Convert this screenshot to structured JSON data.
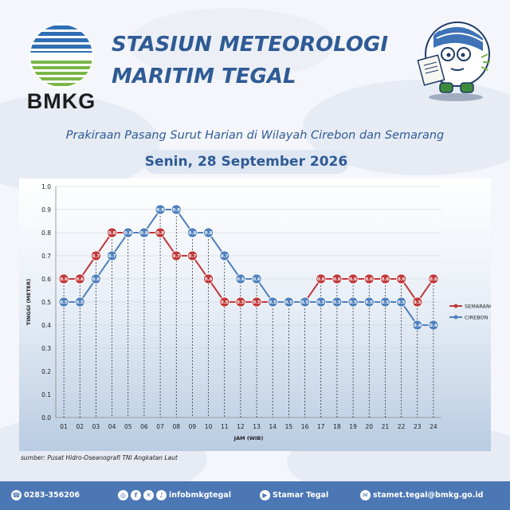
{
  "header": {
    "logo_text": "BMKG",
    "title_line1": "STASIUN METEOROLOGI",
    "title_line2": "MARITIM TEGAL",
    "subtitle": "Prakiraan Pasang Surut Harian di Wilayah Cirebon dan Semarang",
    "date": "Senin, 28 September 2026"
  },
  "source": "sumber: Pusat Hidro-Oseanografi TNI Angkatan Laut",
  "footer": {
    "phone": "0283-356206",
    "social": "infobmkgtegal",
    "youtube": "Stamar Tegal",
    "email": "stamet.tegal@bmkg.go.id"
  },
  "colors": {
    "semarang": "#c0393b",
    "cirebon": "#4f81bd",
    "title": "#2f5b95",
    "footer": "#4c77b5"
  },
  "chart_data": {
    "type": "line",
    "xlabel": "JAM (WIB)",
    "ylabel": "TINGGI (METER)",
    "ylim": [
      0,
      1.0
    ],
    "yticks": [
      "0.0",
      "0.1",
      "0.2",
      "0.3",
      "0.4",
      "0.5",
      "0.6",
      "0.7",
      "0.8",
      "0.9",
      "1.0"
    ],
    "categories": [
      "01",
      "02",
      "03",
      "04",
      "05",
      "06",
      "07",
      "08",
      "09",
      "10",
      "11",
      "12",
      "13",
      "14",
      "15",
      "16",
      "17",
      "18",
      "19",
      "20",
      "21",
      "22",
      "23",
      "24"
    ],
    "legend_position": "right",
    "series": [
      {
        "name": "SEMARANG",
        "color": "#c0393b",
        "values": [
          0.6,
          0.6,
          0.7,
          0.8,
          0.8,
          0.8,
          0.8,
          0.7,
          0.7,
          0.6,
          0.5,
          0.5,
          0.5,
          0.5,
          0.5,
          0.5,
          0.6,
          0.6,
          0.6,
          0.6,
          0.6,
          0.6,
          0.5,
          0.6
        ]
      },
      {
        "name": "CIREBON",
        "color": "#4f81bd",
        "values": [
          0.5,
          0.5,
          0.6,
          0.7,
          0.8,
          0.8,
          0.9,
          0.9,
          0.8,
          0.8,
          0.7,
          0.6,
          0.6,
          0.5,
          0.5,
          0.5,
          0.5,
          0.5,
          0.5,
          0.5,
          0.5,
          0.5,
          0.4,
          0.4
        ]
      }
    ]
  }
}
